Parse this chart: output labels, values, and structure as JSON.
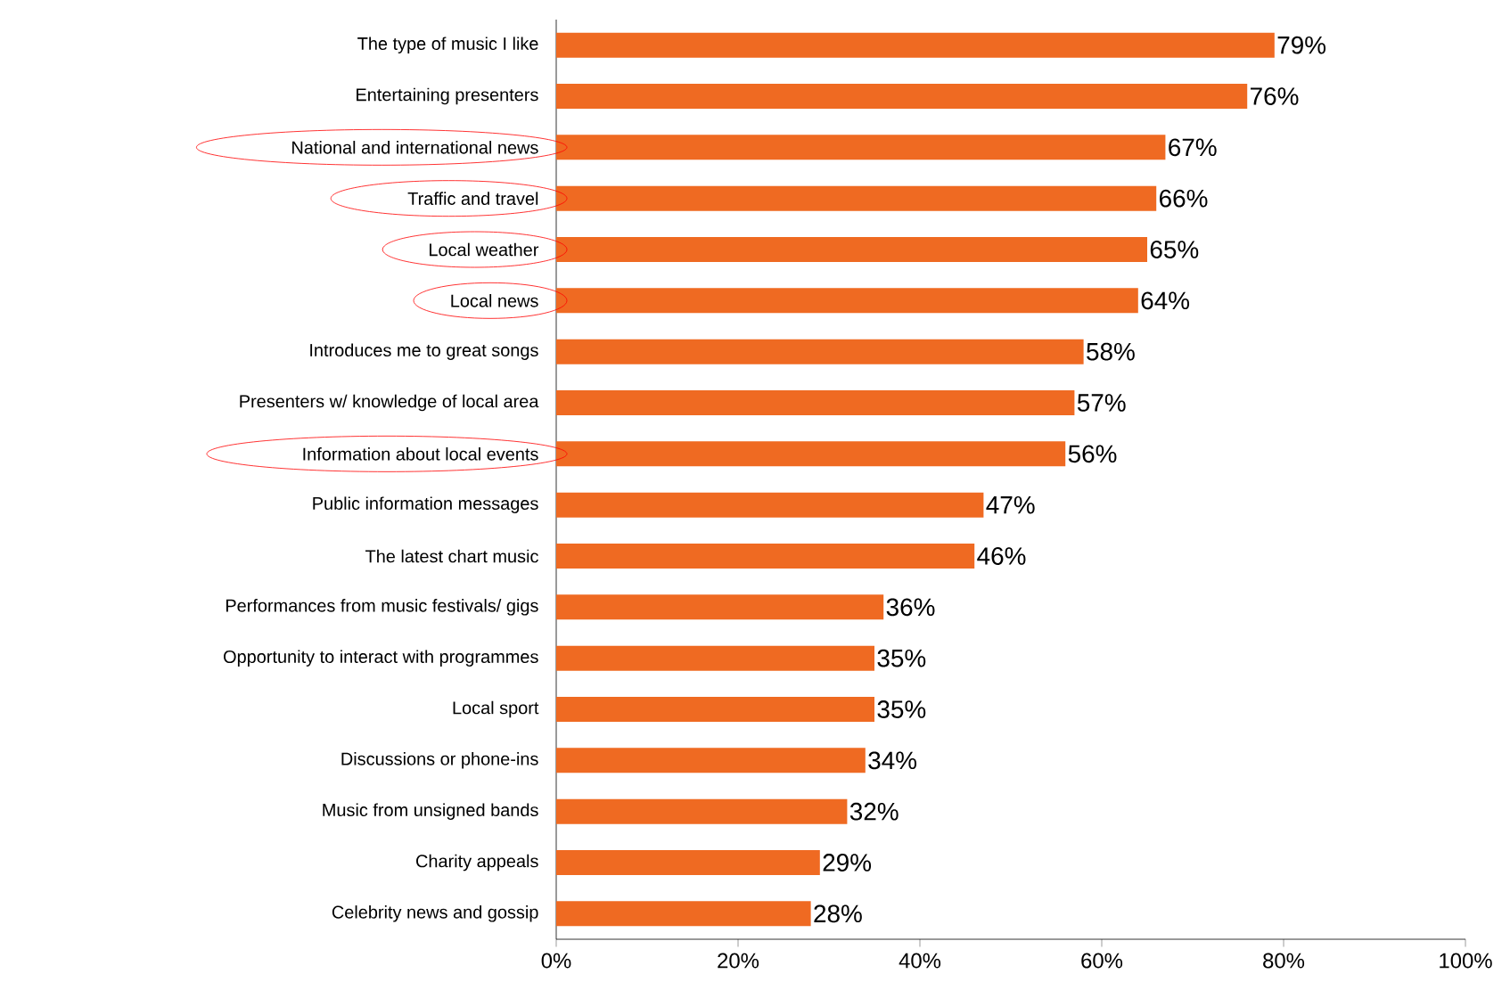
{
  "chart_data": {
    "type": "bar",
    "orientation": "horizontal",
    "color": "#ef6a22",
    "categories": [
      "The type of music I like",
      "Entertaining presenters",
      "National and international news",
      "Traffic and travel",
      "Local weather",
      "Local news",
      "Introduces me to great songs",
      "Presenters w/ knowledge of local area",
      "Information about local events",
      "Public information messages",
      "The latest chart music",
      "Performances from music festivals/ gigs",
      "Opportunity to interact with programmes",
      "Local sport",
      "Discussions or phone-ins",
      "Music from unsigned bands",
      "Charity appeals",
      "Celebrity news and gossip"
    ],
    "values": [
      79,
      76,
      67,
      66,
      65,
      64,
      58,
      57,
      56,
      47,
      46,
      36,
      35,
      35,
      34,
      32,
      29,
      28
    ],
    "value_labels": [
      "79%",
      "76%",
      "67%",
      "66%",
      "65%",
      "64%",
      "58%",
      "57%",
      "56%",
      "47%",
      "46%",
      "36%",
      "35%",
      "35%",
      "34%",
      "32%",
      "29%",
      "28%"
    ],
    "xlim": [
      0,
      100
    ],
    "xticks": [
      {
        "value": 0,
        "label": "0%"
      },
      {
        "value": 20,
        "label": "20%"
      },
      {
        "value": 40,
        "label": "40%"
      },
      {
        "value": 60,
        "label": "60%"
      },
      {
        "value": 80,
        "label": "80%"
      },
      {
        "value": 100,
        "label": "100%"
      }
    ]
  }
}
